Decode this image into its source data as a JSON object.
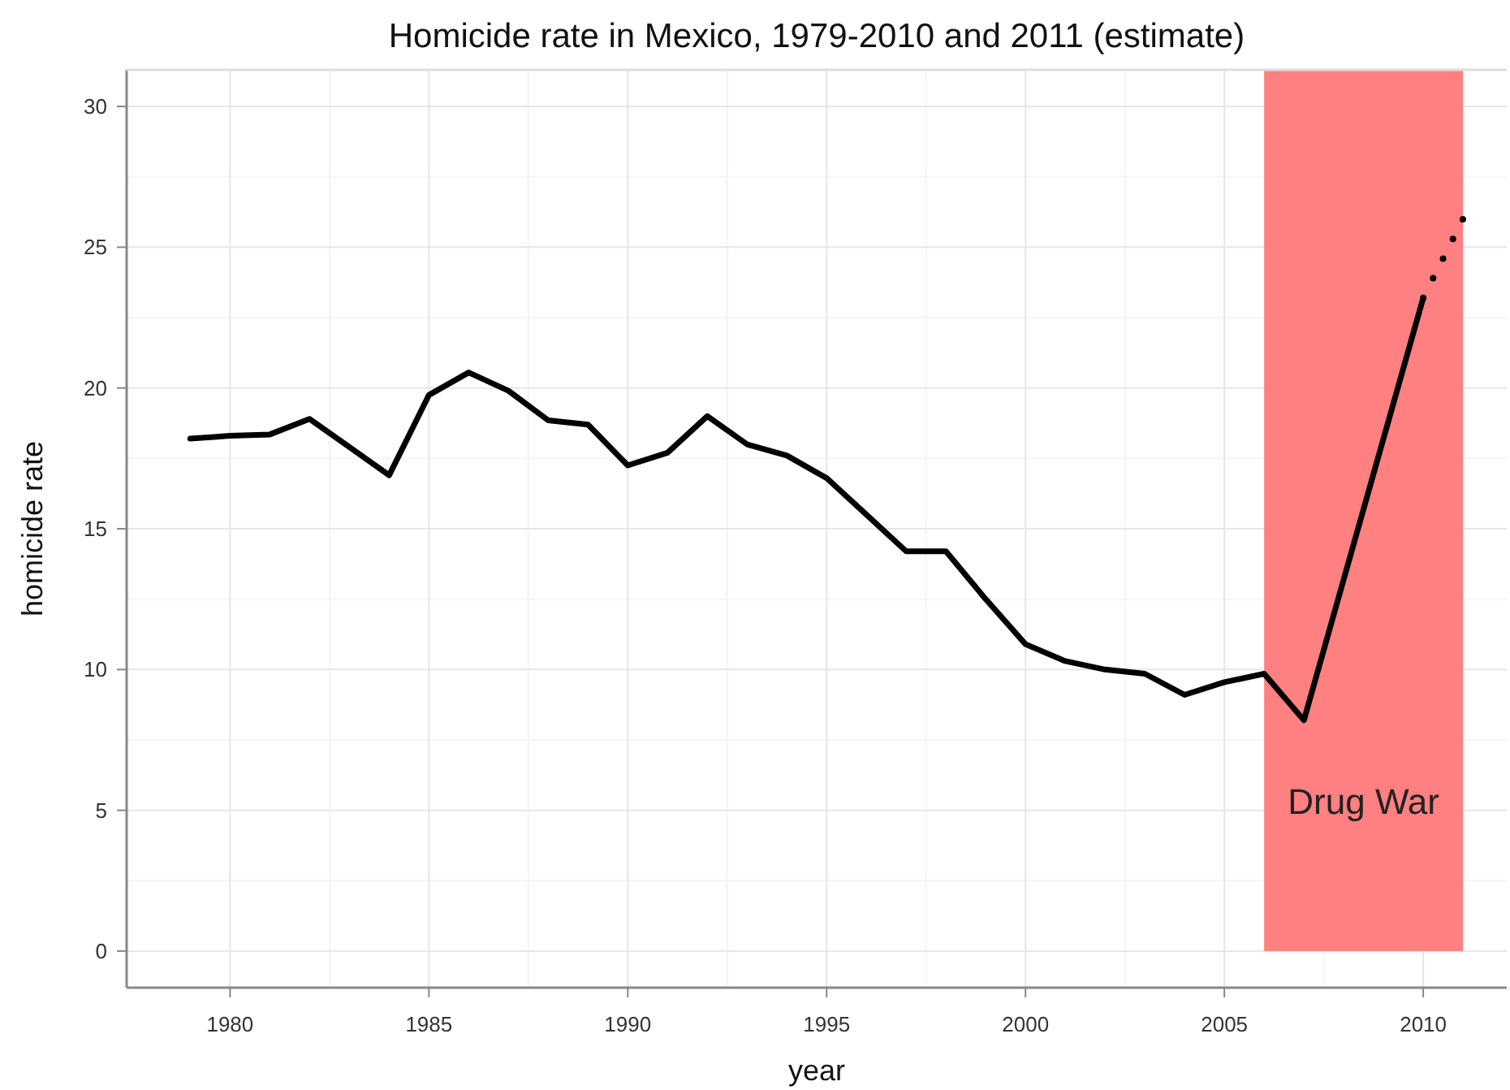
{
  "chart_data": {
    "type": "line",
    "title": "Homicide rate in Mexico, 1979-2010 and 2011 (estimate)",
    "xlabel": "year",
    "ylabel": "homicide rate",
    "x": [
      1979,
      1980,
      1981,
      1982,
      1983,
      1984,
      1985,
      1986,
      1987,
      1988,
      1989,
      1990,
      1991,
      1992,
      1993,
      1994,
      1995,
      1996,
      1997,
      1998,
      1999,
      2000,
      2001,
      2002,
      2003,
      2004,
      2005,
      2006,
      2007,
      2010
    ],
    "series": [
      {
        "color": "#000000",
        "line_style": "solid",
        "values": [
          18.2,
          18.3,
          18.35,
          18.9,
          17.9,
          16.9,
          19.75,
          20.55,
          19.9,
          18.85,
          18.7,
          17.25,
          17.7,
          19.0,
          18.0,
          17.6,
          16.8,
          15.5,
          14.2,
          14.2,
          12.5,
          10.9,
          10.3,
          10.0,
          9.85,
          9.1,
          9.55,
          9.85,
          8.2,
          23.2
        ]
      },
      {
        "color": "#000000",
        "line_style": "dotted",
        "x": [
          2010,
          2011
        ],
        "values": [
          23.2,
          26.0
        ]
      }
    ],
    "bands": [
      {
        "axis": "x",
        "from": 2006,
        "to": 2011,
        "label": "Drug War",
        "color": "#ff8080"
      }
    ],
    "xlim": [
      1977.4,
      2012.1
    ],
    "xticks": [
      1980,
      1985,
      1990,
      1995,
      2000,
      2005,
      2010
    ],
    "ylim": [
      -1.3,
      31.3
    ],
    "yticks": [
      0,
      5,
      10,
      15,
      20,
      25,
      30
    ],
    "grid": true,
    "marker": "none"
  }
}
